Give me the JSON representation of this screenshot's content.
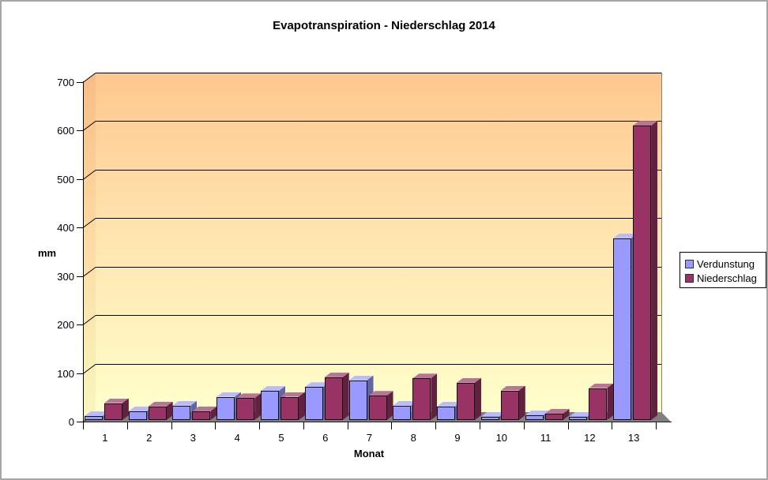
{
  "title": "Evapotranspiration - Niederschlag 2014",
  "chart_data": {
    "type": "bar",
    "subtype": "3d-column",
    "title": "Evapotranspiration - Niederschlag 2014",
    "categories": [
      "1",
      "2",
      "3",
      "4",
      "5",
      "6",
      "7",
      "8",
      "9",
      "10",
      "11",
      "12",
      "13"
    ],
    "series": [
      {
        "name": "Verdunstung",
        "color": "#9999FF",
        "values": [
          8,
          18,
          30,
          48,
          60,
          68,
          82,
          30,
          28,
          7,
          10,
          7,
          375
        ]
      },
      {
        "name": "Niederschlag",
        "color": "#993366",
        "values": [
          35,
          28,
          18,
          45,
          48,
          88,
          50,
          86,
          77,
          61,
          13,
          66,
          607
        ]
      }
    ],
    "xlabel": "Monat",
    "ylabel": "mm",
    "ylim": [
      0,
      700
    ],
    "ytick_step": 100,
    "grid": true,
    "legend_position": "right",
    "wall_gradient_top": "#FFC78F",
    "wall_gradient_bottom": "#FFFFCC",
    "floor_color": "#808080"
  }
}
